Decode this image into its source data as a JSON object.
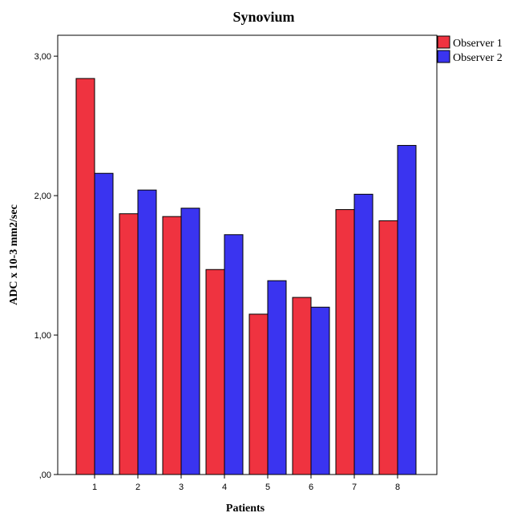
{
  "chart_data": {
    "type": "bar",
    "title": "Synovium",
    "xlabel": "Patients",
    "ylabel": "ADC x 10-3 mm2/sec",
    "categories": [
      "1",
      "2",
      "3",
      "4",
      "5",
      "6",
      "7",
      "8"
    ],
    "series": [
      {
        "name": "Observer 1",
        "color": "#ef3340",
        "values": [
          2.84,
          1.87,
          1.85,
          1.47,
          1.15,
          1.27,
          1.9,
          1.82
        ]
      },
      {
        "name": "Observer 2",
        "color": "#3a34f0",
        "values": [
          2.16,
          2.04,
          1.91,
          1.72,
          1.39,
          1.2,
          2.01,
          2.36
        ]
      }
    ],
    "ylim": [
      0,
      3.15
    ],
    "yticks": [
      0,
      1,
      2,
      3
    ],
    "ytick_labels": [
      ",00",
      "1,00",
      "2,00",
      "3,00"
    ],
    "grid": false,
    "legend_position": "top-right"
  }
}
